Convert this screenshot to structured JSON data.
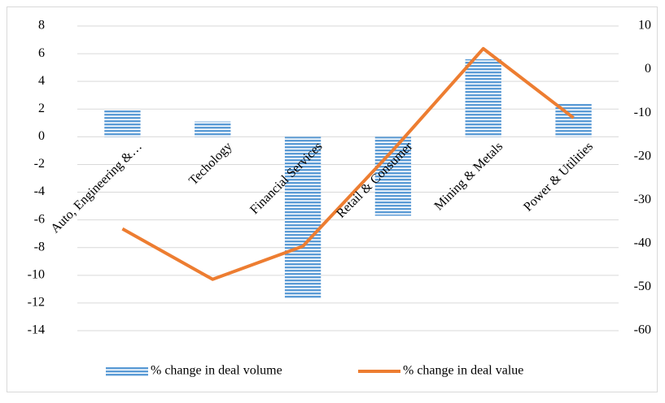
{
  "chart_data": {
    "type": "bar_line",
    "categories": [
      "Auto, Engineering &…",
      "Techology",
      "Financial Services",
      "Retail & Consumer",
      "Mining & Metals",
      "Power & Utilities"
    ],
    "series": [
      {
        "name": "% change in deal volume",
        "type": "bar",
        "color": "#5b9bd5",
        "values": [
          1.9,
          1.1,
          -11.7,
          -5.7,
          5.6,
          2.4
        ]
      },
      {
        "name": "% change in deal value",
        "type": "line",
        "color": "#ed7d31",
        "axis": "y2",
        "values": [
          -36.6,
          -48.2,
          -40.6,
          -18.5,
          4.8,
          -11.1
        ]
      }
    ],
    "ylim": [
      -14,
      8
    ],
    "yticks": [
      -14,
      -12,
      -10,
      -8,
      -6,
      -4,
      -2,
      0,
      2,
      4,
      6,
      8
    ],
    "y2lim": [
      -60,
      10
    ],
    "y2ticks": [
      -60,
      -50,
      -40,
      -30,
      -20,
      -10,
      0,
      10
    ],
    "grid": true,
    "legend": "bottom"
  }
}
